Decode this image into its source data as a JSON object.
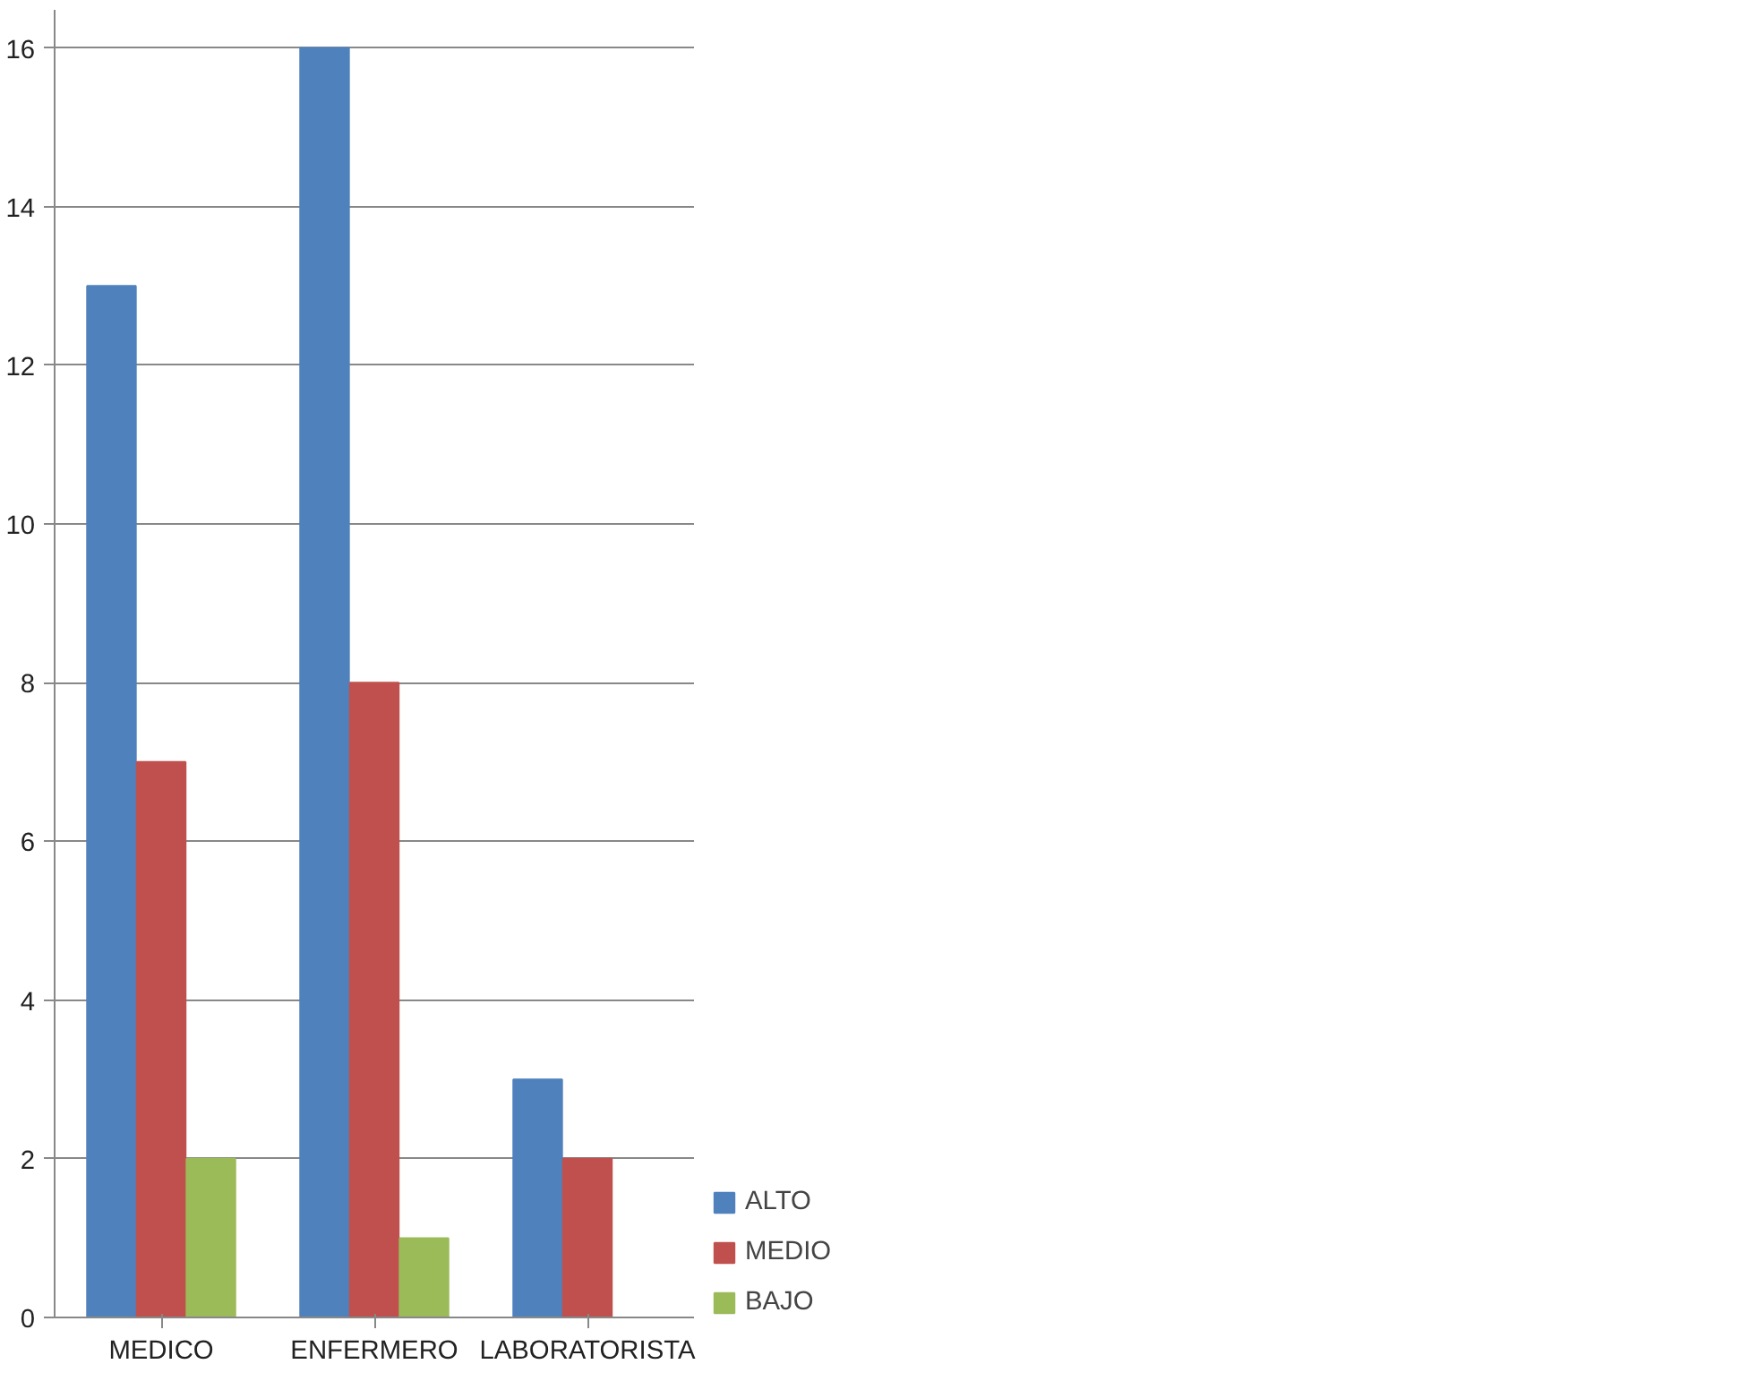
{
  "chart_data": {
    "type": "bar",
    "categories": [
      "MEDICO",
      "ENFERMERO",
      "LABORATORISTA"
    ],
    "series": [
      {
        "name": "ALTO",
        "color": "#4f81bd",
        "values": [
          13,
          16,
          3
        ]
      },
      {
        "name": "MEDIO",
        "color": "#c0504d",
        "values": [
          7,
          8,
          2
        ]
      },
      {
        "name": "BAJO",
        "color": "#9bbb59",
        "values": [
          2,
          1,
          0
        ]
      }
    ],
    "ylim": [
      0,
      16
    ],
    "yticks": [
      0,
      2,
      4,
      6,
      8,
      10,
      12,
      14,
      16
    ],
    "grid": "y",
    "legend": "right"
  }
}
